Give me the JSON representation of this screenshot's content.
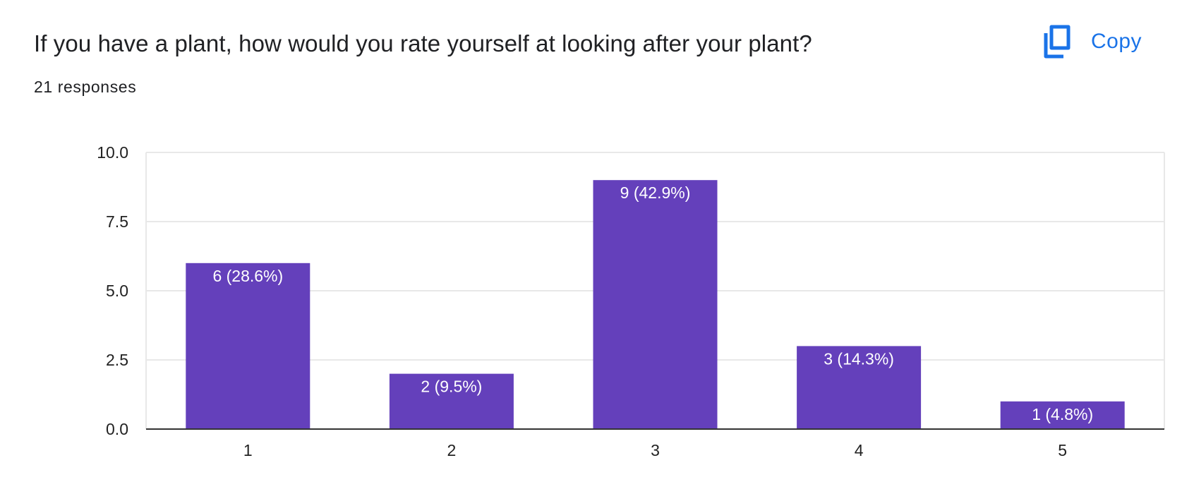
{
  "header": {
    "question": "If you have a plant, how would you rate yourself at looking after your plant?",
    "responses": "21 responses",
    "copy_label": "Copy",
    "copy_icon": "copy-icon"
  },
  "colors": {
    "bar": "#6440bb",
    "accent": "#1a73e8",
    "grid": "#e8e8e8",
    "axis": "#333333"
  },
  "chart_data": {
    "type": "bar",
    "categories": [
      "1",
      "2",
      "3",
      "4",
      "5"
    ],
    "values": [
      6,
      2,
      9,
      3,
      1
    ],
    "data_labels": [
      "6 (28.6%)",
      "2 (9.5%)",
      "9 (42.9%)",
      "3 (14.3%)",
      "1 (4.8%)"
    ],
    "ylim": [
      0,
      10
    ],
    "yticks": [
      0,
      2.5,
      5,
      7.5,
      10
    ],
    "ytick_labels": [
      "0.0",
      "2.5",
      "5.0",
      "7.5",
      "10.0"
    ],
    "grid": true,
    "legend": "none",
    "title": "",
    "xlabel": "",
    "ylabel": ""
  }
}
